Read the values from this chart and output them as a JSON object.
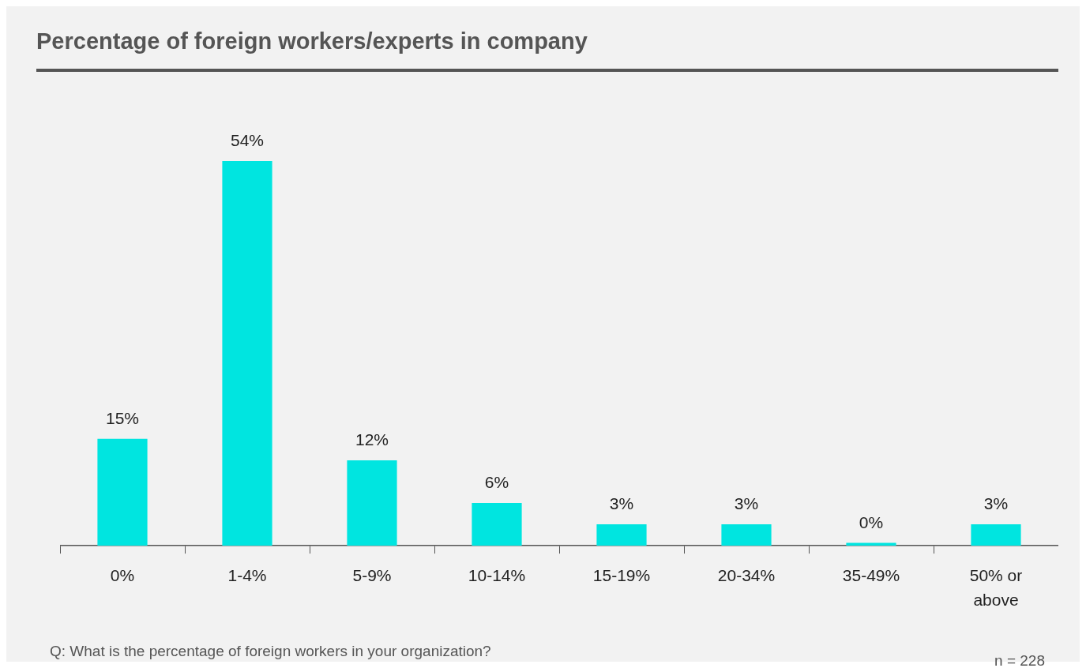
{
  "chart_data": {
    "type": "bar",
    "title": "Percentage of foreign workers/experts in company",
    "categories": [
      "0%",
      "1-4%",
      "5-9%",
      "10-14%",
      "15-19%",
      "20-34%",
      "35-49%",
      "50% or above"
    ],
    "values": [
      15,
      54,
      12,
      6,
      3,
      3,
      0.4,
      3
    ],
    "value_labels": [
      "15%",
      "54%",
      "12%",
      "6%",
      "3%",
      "3%",
      "0%",
      "3%"
    ],
    "color": "#00e5e0",
    "grid": false,
    "legend": false,
    "tick_labels": "x",
    "annotations": [
      "Q: What is the percentage of foreign workers in your organization?",
      "n = 228"
    ]
  }
}
